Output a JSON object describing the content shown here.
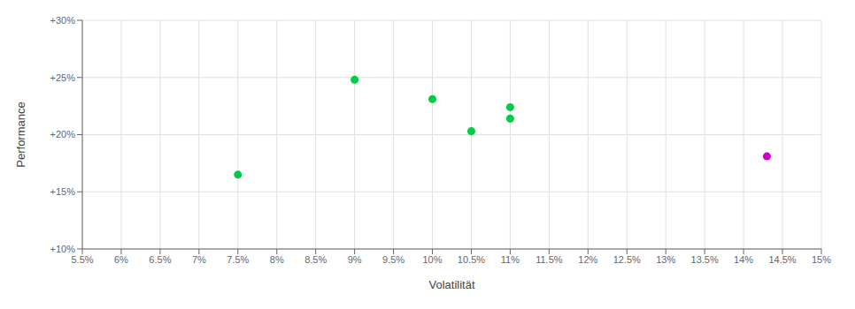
{
  "chart_data": {
    "type": "scatter",
    "xlabel": "Volatilität",
    "ylabel": "Performance",
    "xlim": [
      0.055,
      0.15
    ],
    "ylim": [
      0.1,
      0.3
    ],
    "xticks": [
      {
        "value": 0.055,
        "label": "5.5%"
      },
      {
        "value": 0.06,
        "label": "6%"
      },
      {
        "value": 0.065,
        "label": "6.5%"
      },
      {
        "value": 0.07,
        "label": "7%"
      },
      {
        "value": 0.075,
        "label": "7.5%"
      },
      {
        "value": 0.08,
        "label": "8%"
      },
      {
        "value": 0.085,
        "label": "8.5%"
      },
      {
        "value": 0.09,
        "label": "9%"
      },
      {
        "value": 0.095,
        "label": "9.5%"
      },
      {
        "value": 0.1,
        "label": "10%"
      },
      {
        "value": 0.105,
        "label": "10.5%"
      },
      {
        "value": 0.11,
        "label": "11%"
      },
      {
        "value": 0.115,
        "label": "11.5%"
      },
      {
        "value": 0.12,
        "label": "12%"
      },
      {
        "value": 0.125,
        "label": "12.5%"
      },
      {
        "value": 0.13,
        "label": "13%"
      },
      {
        "value": 0.135,
        "label": "13.5%"
      },
      {
        "value": 0.14,
        "label": "14%"
      },
      {
        "value": 0.145,
        "label": "14.5%"
      },
      {
        "value": 0.15,
        "label": "15%"
      }
    ],
    "yticks": [
      {
        "value": 0.1,
        "label": "+10%"
      },
      {
        "value": 0.15,
        "label": "+15%"
      },
      {
        "value": 0.2,
        "label": "+20%"
      },
      {
        "value": 0.25,
        "label": "+25%"
      },
      {
        "value": 0.3,
        "label": "+30%"
      }
    ],
    "grid": true,
    "series": [
      {
        "color": "#00cc44",
        "x": [
          0.075,
          0.09,
          0.1,
          0.105,
          0.11,
          0.11
        ],
        "values": [
          0.165,
          0.248,
          0.231,
          0.203,
          0.224,
          0.214
        ]
      },
      {
        "color": "#cc00cc",
        "x": [
          0.143
        ],
        "values": [
          0.181
        ]
      }
    ]
  }
}
